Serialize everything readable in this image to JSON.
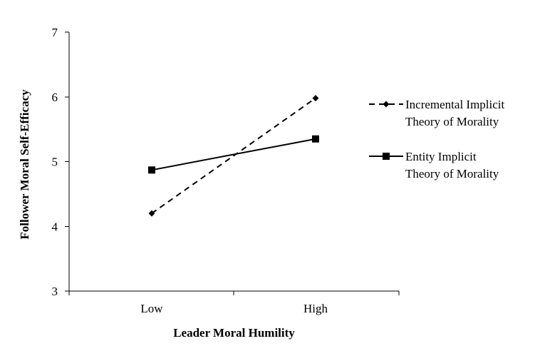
{
  "chart_data": {
    "type": "line",
    "categories": [
      "Low",
      "High"
    ],
    "xlabel": "Leader Moral Humility",
    "ylabel": "Follower Moral Self-Efficacy",
    "ylim": [
      3,
      7
    ],
    "yticks": [
      3,
      4,
      5,
      6,
      7
    ],
    "grid": false,
    "legend_position": "right",
    "series": [
      {
        "name_lines": [
          "Incremental Implicit",
          "Theory of Morality"
        ],
        "values": [
          4.2,
          5.98
        ],
        "line_style": "dashed",
        "marker": "diamond",
        "color": "#000000"
      },
      {
        "name_lines": [
          "Entity Implicit",
          "Theory of Morality"
        ],
        "values": [
          4.87,
          5.35
        ],
        "line_style": "solid",
        "marker": "square",
        "color": "#000000"
      }
    ]
  }
}
